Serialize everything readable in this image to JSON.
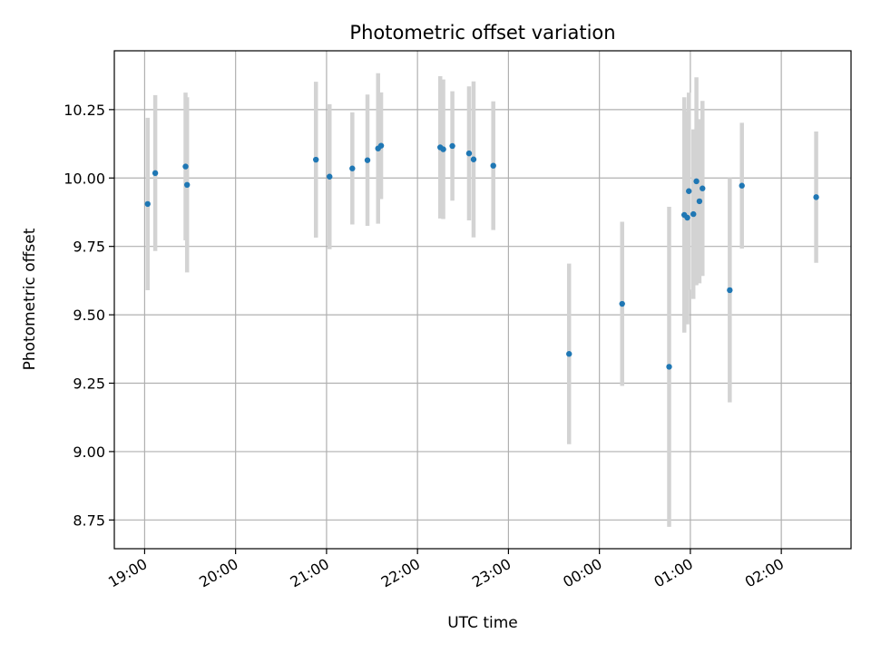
{
  "chart_data": {
    "type": "scatter",
    "title": "Photometric offset variation",
    "xlabel": "UTC time",
    "ylabel": "Photometric offset",
    "x_ticks": [
      "19:00",
      "20:00",
      "21:00",
      "22:00",
      "23:00",
      "00:00",
      "01:00",
      "02:00"
    ],
    "y_ticks": [
      "8.75",
      "9.00",
      "9.25",
      "9.50",
      "9.75",
      "10.00",
      "10.25"
    ],
    "xlim": [
      "18:40",
      "02:46"
    ],
    "ylim": [
      8.645,
      10.465
    ],
    "grid": true,
    "colors": {
      "point": "#1f77b4",
      "errorbar": "#d3d3d3",
      "grid": "#b0b0b0"
    },
    "points": [
      {
        "t": "19:02",
        "y": 9.905,
        "err": 0.315
      },
      {
        "t": "19:07",
        "y": 10.018,
        "err": 0.285
      },
      {
        "t": "19:27",
        "y": 10.042,
        "err": 0.27
      },
      {
        "t": "19:28",
        "y": 9.975,
        "err": 0.32
      },
      {
        "t": "20:53",
        "y": 10.067,
        "err": 0.285
      },
      {
        "t": "21:02",
        "y": 10.005,
        "err": 0.265
      },
      {
        "t": "21:17",
        "y": 10.035,
        "err": 0.205
      },
      {
        "t": "21:27",
        "y": 10.065,
        "err": 0.24
      },
      {
        "t": "21:34",
        "y": 10.108,
        "err": 0.275
      },
      {
        "t": "21:36",
        "y": 10.118,
        "err": 0.195
      },
      {
        "t": "22:15",
        "y": 10.112,
        "err": 0.26
      },
      {
        "t": "22:17",
        "y": 10.105,
        "err": 0.255
      },
      {
        "t": "22:23",
        "y": 10.117,
        "err": 0.2
      },
      {
        "t": "22:34",
        "y": 10.09,
        "err": 0.245
      },
      {
        "t": "22:37",
        "y": 10.068,
        "err": 0.285
      },
      {
        "t": "22:50",
        "y": 10.045,
        "err": 0.235
      },
      {
        "t": "23:40",
        "y": 9.357,
        "err": 0.33
      },
      {
        "t": "00:15",
        "y": 9.54,
        "err": 0.3
      },
      {
        "t": "00:46",
        "y": 9.31,
        "err": 0.585
      },
      {
        "t": "00:56",
        "y": 9.865,
        "err": 0.43
      },
      {
        "t": "00:58",
        "y": 9.855,
        "err": 0.39
      },
      {
        "t": "00:59",
        "y": 9.952,
        "err": 0.36
      },
      {
        "t": "01:02",
        "y": 9.868,
        "err": 0.31
      },
      {
        "t": "01:04",
        "y": 9.988,
        "err": 0.38
      },
      {
        "t": "01:06",
        "y": 9.915,
        "err": 0.3
      },
      {
        "t": "01:08",
        "y": 9.962,
        "err": 0.32
      },
      {
        "t": "01:26",
        "y": 9.59,
        "err": 0.41
      },
      {
        "t": "01:34",
        "y": 9.972,
        "err": 0.23
      },
      {
        "t": "02:23",
        "y": 9.93,
        "err": 0.24
      }
    ]
  }
}
